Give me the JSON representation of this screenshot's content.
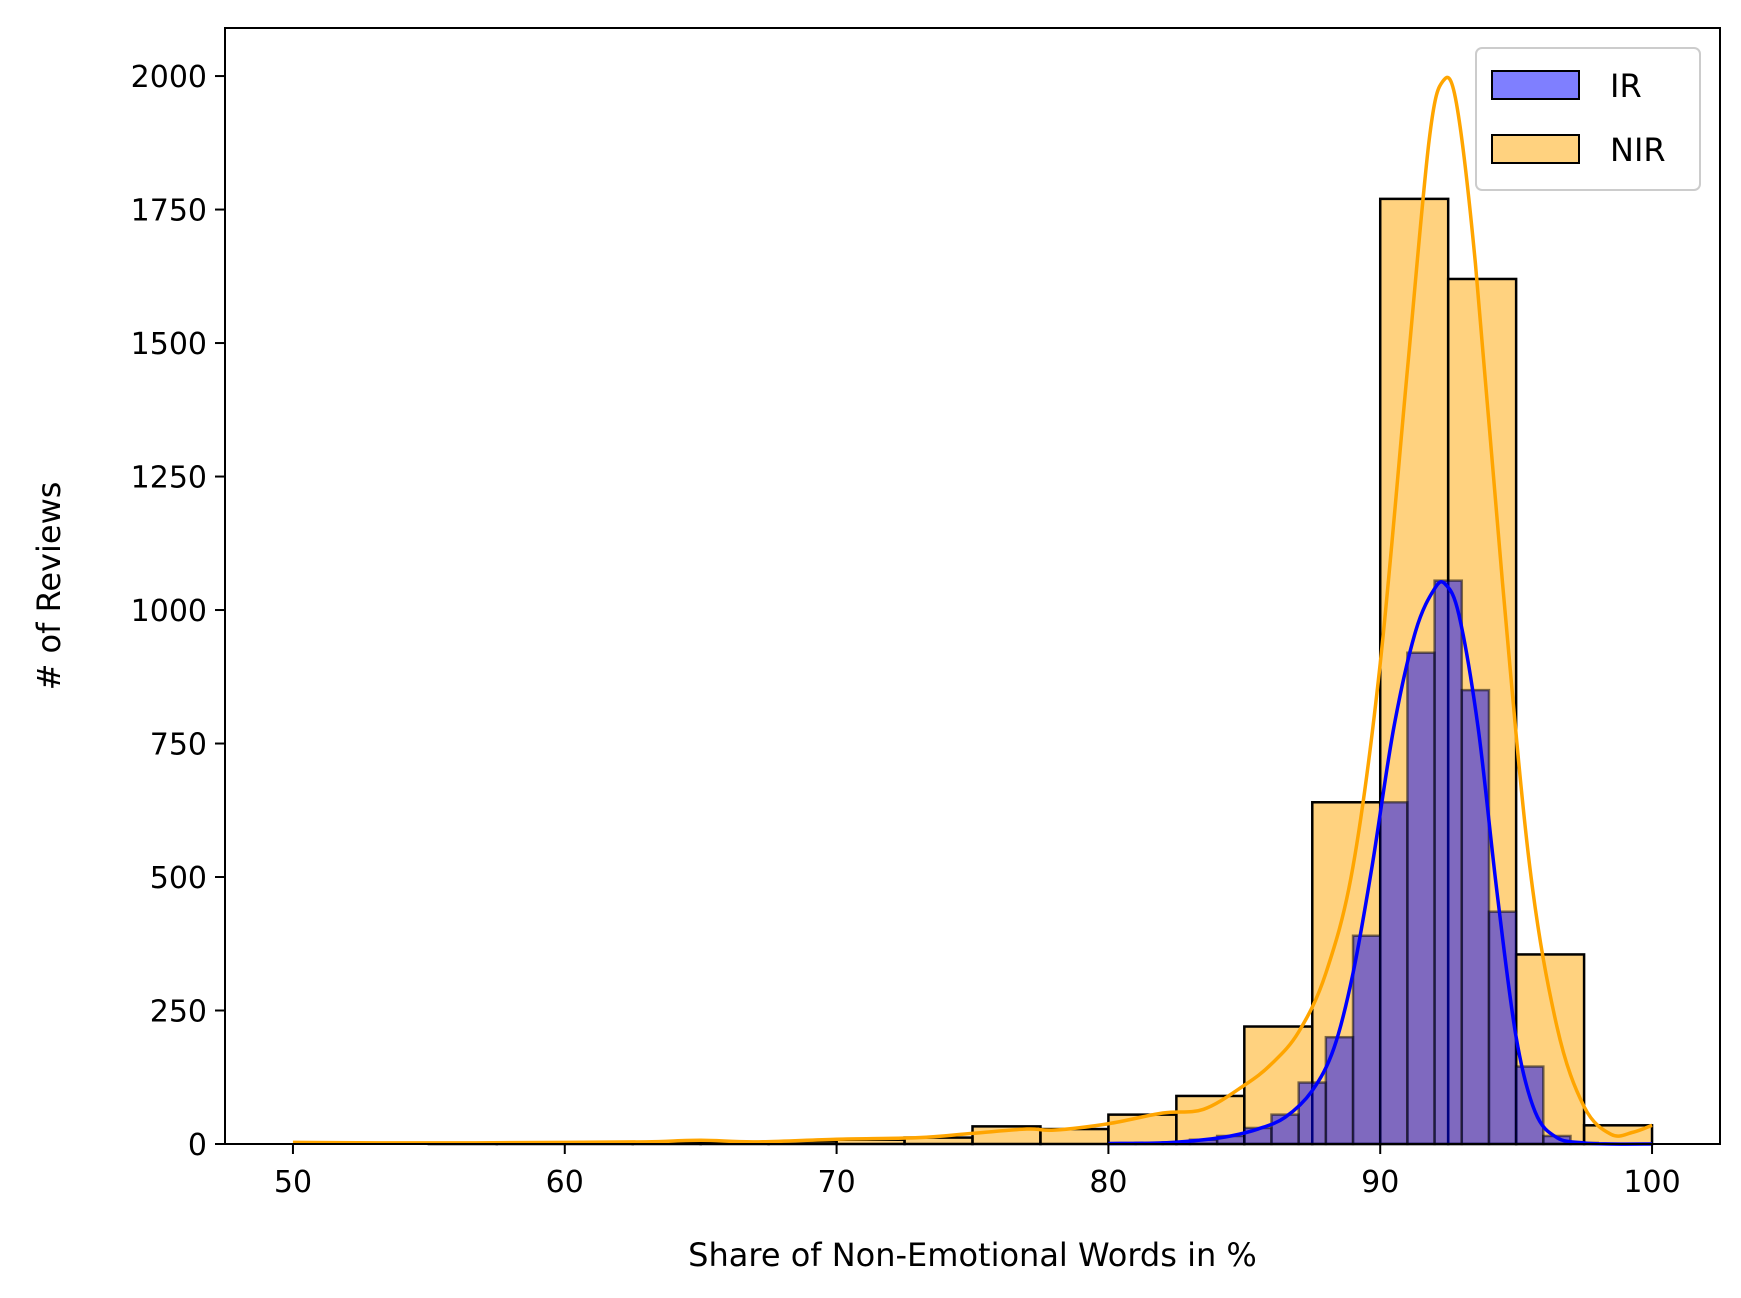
{
  "chart_data": {
    "type": "bar",
    "title": "",
    "xlabel": "Share of Non-Emotional Words in %",
    "ylabel": "# of Reviews",
    "xlim": [
      47.5,
      102.5
    ],
    "ylim": [
      0,
      2090
    ],
    "xticks": [
      50,
      60,
      70,
      80,
      90,
      100
    ],
    "yticks": [
      0,
      250,
      500,
      750,
      1000,
      1250,
      1500,
      1750,
      2000
    ],
    "grid": false,
    "legend_position": "top-right",
    "series": [
      {
        "name": "NIR",
        "color": "#FFA500",
        "kind": "histogram",
        "bin_width": 2.5,
        "bins": [
          {
            "x0": 50.0,
            "count": 0
          },
          {
            "x0": 52.5,
            "count": 0
          },
          {
            "x0": 55.0,
            "count": 1
          },
          {
            "x0": 57.5,
            "count": 1
          },
          {
            "x0": 60.0,
            "count": 1
          },
          {
            "x0": 62.5,
            "count": 2
          },
          {
            "x0": 65.0,
            "count": 3
          },
          {
            "x0": 67.5,
            "count": 5
          },
          {
            "x0": 70.0,
            "count": 8
          },
          {
            "x0": 72.5,
            "count": 12
          },
          {
            "x0": 75.0,
            "count": 33
          },
          {
            "x0": 77.5,
            "count": 28
          },
          {
            "x0": 80.0,
            "count": 55
          },
          {
            "x0": 82.5,
            "count": 90
          },
          {
            "x0": 85.0,
            "count": 220
          },
          {
            "x0": 87.5,
            "count": 640
          },
          {
            "x0": 90.0,
            "count": 1770
          },
          {
            "x0": 92.5,
            "count": 1620
          },
          {
            "x0": 95.0,
            "count": 355
          },
          {
            "x0": 97.5,
            "count": 35
          }
        ],
        "kde": [
          [
            50,
            3
          ],
          [
            55,
            2
          ],
          [
            60,
            3
          ],
          [
            63,
            4
          ],
          [
            65,
            7
          ],
          [
            67,
            4
          ],
          [
            70,
            9
          ],
          [
            73,
            12
          ],
          [
            75,
            20
          ],
          [
            77,
            28
          ],
          [
            78,
            26
          ],
          [
            80,
            38
          ],
          [
            82,
            58
          ],
          [
            83.5,
            65
          ],
          [
            85,
            110
          ],
          [
            86,
            150
          ],
          [
            87,
            210
          ],
          [
            88,
            320
          ],
          [
            89,
            520
          ],
          [
            90,
            900
          ],
          [
            91,
            1450
          ],
          [
            91.8,
            1880
          ],
          [
            92.3,
            1990
          ],
          [
            92.8,
            1950
          ],
          [
            93.5,
            1650
          ],
          [
            94.5,
            1050
          ],
          [
            95.5,
            520
          ],
          [
            96.5,
            220
          ],
          [
            97.5,
            70
          ],
          [
            98.5,
            18
          ],
          [
            99.3,
            22
          ],
          [
            100,
            35
          ]
        ]
      },
      {
        "name": "IR",
        "color": "#0000FF",
        "kind": "histogram",
        "bin_width": 1.0,
        "bins": [
          {
            "x0": 80.0,
            "count": 1
          },
          {
            "x0": 81.0,
            "count": 2
          },
          {
            "x0": 82.0,
            "count": 3
          },
          {
            "x0": 83.0,
            "count": 8
          },
          {
            "x0": 84.0,
            "count": 15
          },
          {
            "x0": 85.0,
            "count": 30
          },
          {
            "x0": 86.0,
            "count": 55
          },
          {
            "x0": 87.0,
            "count": 115
          },
          {
            "x0": 88.0,
            "count": 200
          },
          {
            "x0": 89.0,
            "count": 390
          },
          {
            "x0": 90.0,
            "count": 640
          },
          {
            "x0": 91.0,
            "count": 920
          },
          {
            "x0": 92.0,
            "count": 1055
          },
          {
            "x0": 93.0,
            "count": 850
          },
          {
            "x0": 94.0,
            "count": 435
          },
          {
            "x0": 95.0,
            "count": 145
          },
          {
            "x0": 96.0,
            "count": 15
          },
          {
            "x0": 97.0,
            "count": 2
          }
        ],
        "kde": [
          [
            80,
            1
          ],
          [
            82,
            2
          ],
          [
            83.5,
            8
          ],
          [
            84.5,
            15
          ],
          [
            85.5,
            28
          ],
          [
            86.5,
            50
          ],
          [
            87.5,
            100
          ],
          [
            88.3,
            180
          ],
          [
            89,
            320
          ],
          [
            89.7,
            520
          ],
          [
            90.5,
            780
          ],
          [
            91.3,
            960
          ],
          [
            92.0,
            1040
          ],
          [
            92.4,
            1048
          ],
          [
            92.9,
            990
          ],
          [
            93.6,
            780
          ],
          [
            94.3,
            470
          ],
          [
            95.0,
            200
          ],
          [
            95.7,
            60
          ],
          [
            96.5,
            12
          ],
          [
            97.5,
            2
          ],
          [
            98.5,
            0
          ],
          [
            100,
            0
          ]
        ]
      }
    ]
  }
}
